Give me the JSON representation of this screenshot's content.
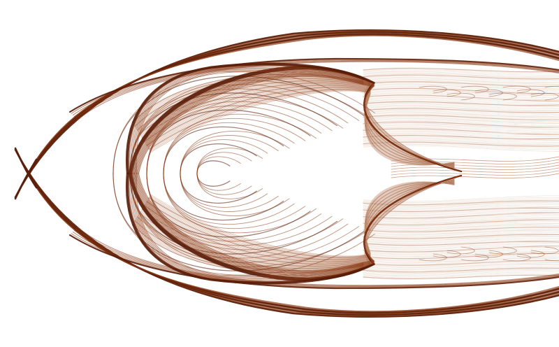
{
  "image": {
    "subject": "strange-attractor",
    "colors": {
      "background": "#ffffff",
      "dark": "#5a1d08",
      "mid": "#8a3a16",
      "light": "#c99a82",
      "faint": "#ead8cc"
    }
  }
}
